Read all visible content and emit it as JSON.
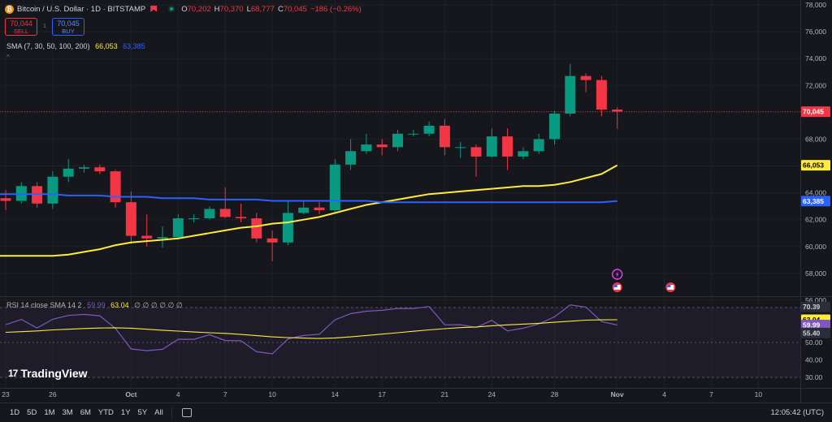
{
  "header": {
    "coin_letter": "₿",
    "symbol_title": "Bitcoin / U.S. Dollar · 1D · BITSTAMP",
    "ohlc": [
      {
        "key": "O",
        "value": "70,202"
      },
      {
        "key": "H",
        "value": "70,370"
      },
      {
        "key": "L",
        "value": "68,777"
      },
      {
        "key": "C",
        "value": "70,045"
      }
    ],
    "change": "−186 (−0.26%)",
    "sell_price": "70,044",
    "sell_label": "SELL",
    "spread": "1",
    "buy_price": "70,045",
    "buy_label": "BUY"
  },
  "indicators": {
    "sma_name": "SMA (7, 30, 50, 100, 200)",
    "sma_yellow": "66,053",
    "sma_blue": "63,385",
    "collapse_glyph": "^",
    "rsi_name": "RSI 14 close SMA 14 2",
    "rsi_value": "59.99",
    "rsi_sma": "63.04",
    "rsi_placeholders": "∅ ∅ ∅ ∅ ∅ ∅"
  },
  "price_axis": {
    "ticks": [
      "78,000",
      "76,000",
      "74,000",
      "72,000",
      "70,000",
      "68,000",
      "66,000",
      "64,000",
      "62,000",
      "60,000",
      "58,000",
      "56,000"
    ],
    "last_label": "70,045",
    "sma_yellow_label": "66,053",
    "sma_blue_label": "63,385"
  },
  "rsi_axis": {
    "ticks": [
      "70.00",
      "60.00",
      "50.00",
      "40.00",
      "30.00"
    ],
    "labels": [
      {
        "text": "70.39",
        "kind": "plain"
      },
      {
        "text": "63.04",
        "kind": "yellow"
      },
      {
        "text": "59.99",
        "kind": "purple"
      },
      {
        "text": "55.40",
        "kind": "plain"
      }
    ]
  },
  "time_axis": [
    "23",
    "26",
    "Oct",
    "4",
    "7",
    "10",
    "14",
    "17",
    "21",
    "24",
    "28",
    "Nov",
    "4",
    "7",
    "10"
  ],
  "logo_mark": "17",
  "logo_text": "TradingView",
  "toolbar": {
    "timeframes": [
      "1D",
      "5D",
      "1M",
      "3M",
      "6M",
      "YTD",
      "1Y",
      "5Y",
      "All"
    ],
    "clock": "12:05:42 (UTC)"
  },
  "colors": {
    "up": "#089981",
    "down": "#f23645",
    "sma_yellow": "#ffeb3b",
    "sma_blue": "#2962ff",
    "rsi_line": "#7e57c2",
    "background": "#16171c"
  },
  "chart_data": {
    "type": "candlestick",
    "price_range": [
      54000,
      78000
    ],
    "x_dates": [
      "2024-09-23",
      "2024-09-24",
      "2024-09-25",
      "2024-09-26",
      "2024-09-27",
      "2024-09-28",
      "2024-09-29",
      "2024-09-30",
      "2024-10-01",
      "2024-10-02",
      "2024-10-03",
      "2024-10-04",
      "2024-10-05",
      "2024-10-06",
      "2024-10-07",
      "2024-10-08",
      "2024-10-09",
      "2024-10-10",
      "2024-10-11",
      "2024-10-12",
      "2024-10-13",
      "2024-10-14",
      "2024-10-15",
      "2024-10-16",
      "2024-10-17",
      "2024-10-18",
      "2024-10-19",
      "2024-10-20",
      "2024-10-21",
      "2024-10-22",
      "2024-10-23",
      "2024-10-24",
      "2024-10-25",
      "2024-10-26",
      "2024-10-27",
      "2024-10-28",
      "2024-10-29",
      "2024-10-30",
      "2024-10-31",
      "2024-11-01"
    ],
    "candles": [
      {
        "open": 63600,
        "high": 64200,
        "low": 62700,
        "close": 63400
      },
      {
        "open": 63400,
        "high": 64800,
        "low": 63200,
        "close": 64500
      },
      {
        "open": 64500,
        "high": 64800,
        "low": 62900,
        "close": 63200
      },
      {
        "open": 63200,
        "high": 65600,
        "low": 62800,
        "close": 65200
      },
      {
        "open": 65200,
        "high": 66500,
        "low": 64800,
        "close": 65800
      },
      {
        "open": 65800,
        "high": 66100,
        "low": 65500,
        "close": 65900
      },
      {
        "open": 65900,
        "high": 66100,
        "low": 65400,
        "close": 65600
      },
      {
        "open": 65600,
        "high": 65700,
        "low": 62900,
        "close": 63300
      },
      {
        "open": 63300,
        "high": 64100,
        "low": 60200,
        "close": 60800
      },
      {
        "open": 60800,
        "high": 62400,
        "low": 60000,
        "close": 60600
      },
      {
        "open": 60600,
        "high": 61500,
        "low": 59900,
        "close": 60700
      },
      {
        "open": 60700,
        "high": 62400,
        "low": 60500,
        "close": 62100
      },
      {
        "open": 62100,
        "high": 62400,
        "low": 61800,
        "close": 62100
      },
      {
        "open": 62100,
        "high": 63000,
        "low": 62000,
        "close": 62800
      },
      {
        "open": 62800,
        "high": 64400,
        "low": 62100,
        "close": 62200
      },
      {
        "open": 62200,
        "high": 63200,
        "low": 61800,
        "close": 62100
      },
      {
        "open": 62100,
        "high": 62500,
        "low": 60300,
        "close": 60600
      },
      {
        "open": 60600,
        "high": 61200,
        "low": 58900,
        "close": 60300
      },
      {
        "open": 60300,
        "high": 63400,
        "low": 60100,
        "close": 62500
      },
      {
        "open": 62500,
        "high": 63400,
        "low": 62400,
        "close": 62900
      },
      {
        "open": 62900,
        "high": 63300,
        "low": 62400,
        "close": 62700
      },
      {
        "open": 62700,
        "high": 66500,
        "low": 62600,
        "close": 66100
      },
      {
        "open": 66100,
        "high": 68000,
        "low": 65700,
        "close": 67100
      },
      {
        "open": 67100,
        "high": 68400,
        "low": 66900,
        "close": 67600
      },
      {
        "open": 67600,
        "high": 68000,
        "low": 66800,
        "close": 67400
      },
      {
        "open": 67400,
        "high": 68700,
        "low": 67100,
        "close": 68400
      },
      {
        "open": 68400,
        "high": 68700,
        "low": 68200,
        "close": 68400
      },
      {
        "open": 68400,
        "high": 69300,
        "low": 68200,
        "close": 69000
      },
      {
        "open": 69000,
        "high": 69500,
        "low": 66800,
        "close": 67400
      },
      {
        "open": 67400,
        "high": 67800,
        "low": 66600,
        "close": 67400
      },
      {
        "open": 67400,
        "high": 67600,
        "low": 65200,
        "close": 66700
      },
      {
        "open": 66700,
        "high": 68800,
        "low": 66600,
        "close": 68200
      },
      {
        "open": 68200,
        "high": 68800,
        "low": 65700,
        "close": 66700
      },
      {
        "open": 66700,
        "high": 67400,
        "low": 66500,
        "close": 67100
      },
      {
        "open": 67100,
        "high": 68400,
        "low": 66900,
        "close": 68000
      },
      {
        "open": 68000,
        "high": 70100,
        "low": 67600,
        "close": 69900
      },
      {
        "open": 69900,
        "high": 73600,
        "low": 69700,
        "close": 72700
      },
      {
        "open": 72700,
        "high": 72900,
        "low": 71500,
        "close": 72400
      },
      {
        "open": 72400,
        "high": 72700,
        "low": 69700,
        "close": 70200
      },
      {
        "open": 70202,
        "high": 70370,
        "low": 68777,
        "close": 70045
      }
    ],
    "series": [
      {
        "name": "66,053",
        "values": [
          59300,
          59300,
          59300,
          59300,
          59400,
          59600,
          59800,
          60100,
          60300,
          60400,
          60500,
          60600,
          60800,
          61000,
          61200,
          61400,
          61500,
          61700,
          61800,
          62000,
          62200,
          62500,
          62800,
          63100,
          63300,
          63500,
          63700,
          63900,
          64000,
          64100,
          64200,
          64300,
          64400,
          64500,
          64500,
          64600,
          64800,
          65100,
          65400,
          66053
        ]
      },
      {
        "name": "63,385",
        "values": [
          63900,
          63900,
          63900,
          63900,
          63800,
          63800,
          63800,
          63700,
          63700,
          63700,
          63600,
          63600,
          63600,
          63500,
          63500,
          63500,
          63500,
          63400,
          63400,
          63400,
          63400,
          63400,
          63400,
          63400,
          63300,
          63300,
          63300,
          63300,
          63300,
          63300,
          63300,
          63300,
          63300,
          63300,
          63300,
          63300,
          63300,
          63300,
          63300,
          63385
        ]
      }
    ],
    "rsi_range": [
      30,
      70
    ],
    "rsi_bands": [
      70,
      50,
      30
    ],
    "rsi": [
      {
        "name": "59.99",
        "values": [
          60.2,
          63.2,
          58.3,
          63.3,
          65.5,
          66.1,
          65.3,
          58.0,
          46.3,
          45.3,
          46.1,
          51.8,
          51.8,
          54.4,
          51.1,
          51.0,
          44.7,
          43.5,
          52.0,
          54.0,
          54.7,
          63.0,
          66.5,
          67.9,
          68.4,
          69.5,
          69.5,
          70.6,
          60.1,
          60.2,
          58.6,
          62.7,
          56.6,
          58.2,
          60.6,
          64.7,
          71.5,
          70.3,
          62.0,
          59.99
        ]
      }
    ],
    "rsi_sma": [
      {
        "name": "63.04",
        "values": [
          55.8,
          56.2,
          56.6,
          57.2,
          57.6,
          58.0,
          58.3,
          58.4,
          58.2,
          57.6,
          57.0,
          56.5,
          56.0,
          55.6,
          55.2,
          54.6,
          53.9,
          53.2,
          52.8,
          52.5,
          52.3,
          52.6,
          53.2,
          54.0,
          54.8,
          55.6,
          56.4,
          57.2,
          57.9,
          58.5,
          58.9,
          59.6,
          60.1,
          60.5,
          61.0,
          61.6,
          62.2,
          62.8,
          63.0,
          63.04
        ]
      }
    ]
  }
}
